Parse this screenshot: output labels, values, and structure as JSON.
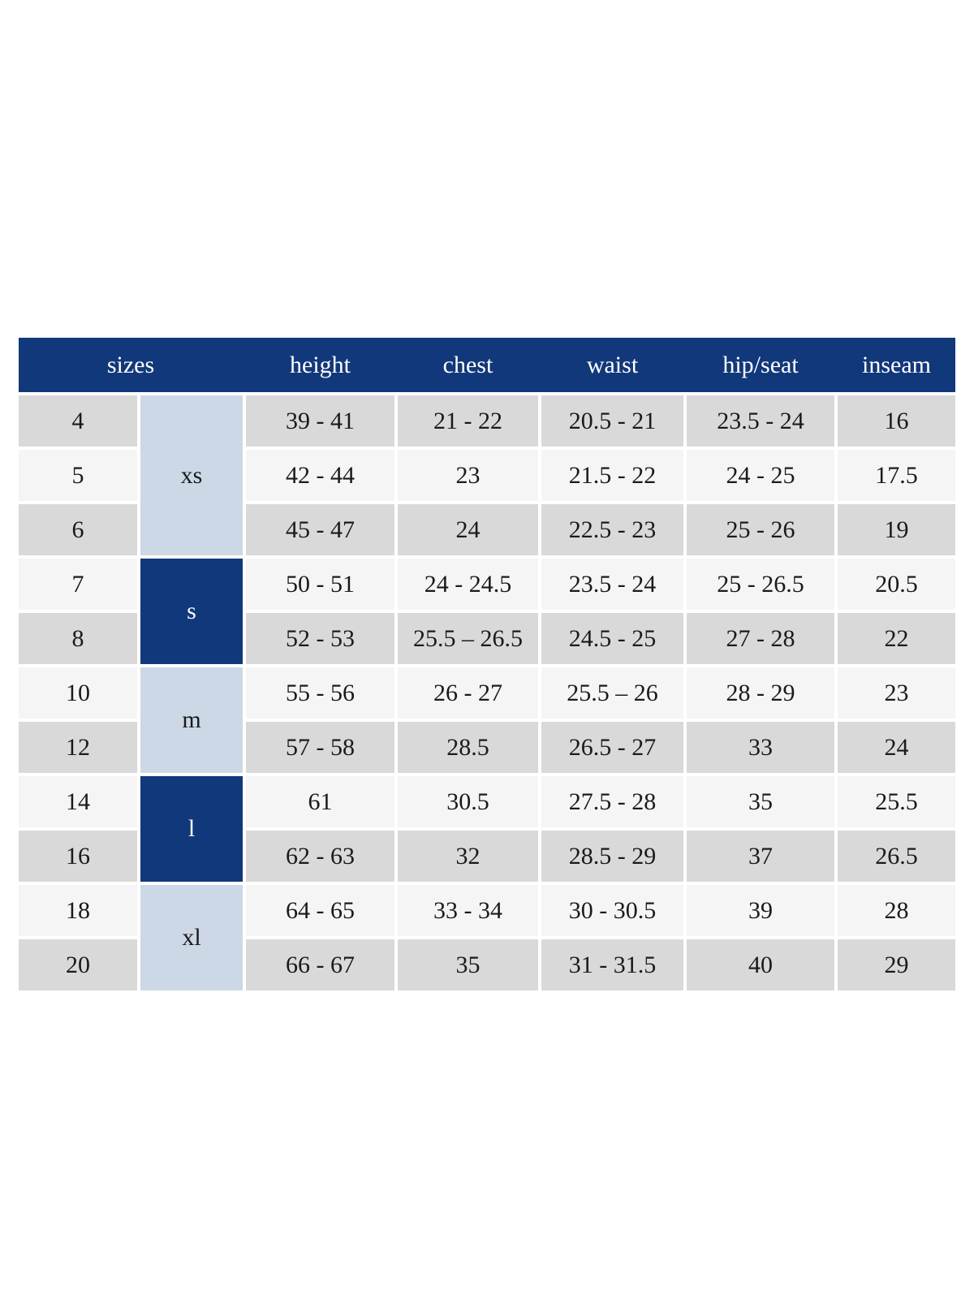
{
  "header": {
    "labels": {
      "sizes": "sizes",
      "height": "height",
      "chest": "chest",
      "waist": "waist",
      "hip_seat": "hip/seat",
      "inseam": "inseam"
    }
  },
  "groups": [
    {
      "label": "xs",
      "variant": "light",
      "row_span": 3
    },
    {
      "label": "s",
      "variant": "dark",
      "row_span": 2
    },
    {
      "label": "m",
      "variant": "light",
      "row_span": 2
    },
    {
      "label": "l",
      "variant": "dark",
      "row_span": 2
    },
    {
      "label": "xl",
      "variant": "light",
      "row_span": 2
    }
  ],
  "rows": [
    {
      "size": "4",
      "height": "39 - 41",
      "chest": "21 - 22",
      "waist": "20.5 - 21",
      "hip_seat": "23.5 - 24",
      "inseam": "16"
    },
    {
      "size": "5",
      "height": "42 - 44",
      "chest": "23",
      "waist": "21.5 - 22",
      "hip_seat": "24 - 25",
      "inseam": "17.5"
    },
    {
      "size": "6",
      "height": "45 - 47",
      "chest": "24",
      "waist": "22.5 - 23",
      "hip_seat": "25 - 26",
      "inseam": "19"
    },
    {
      "size": "7",
      "height": "50 - 51",
      "chest": "24 - 24.5",
      "waist": "23.5 - 24",
      "hip_seat": "25 - 26.5",
      "inseam": "20.5"
    },
    {
      "size": "8",
      "height": "52 - 53",
      "chest": "25.5 – 26.5",
      "waist": "24.5 - 25",
      "hip_seat": "27 - 28",
      "inseam": "22"
    },
    {
      "size": "10",
      "height": "55 - 56",
      "chest": "26 - 27",
      "waist": "25.5 – 26",
      "hip_seat": "28 - 29",
      "inseam": "23"
    },
    {
      "size": "12",
      "height": "57 - 58",
      "chest": "28.5",
      "waist": "26.5 - 27",
      "hip_seat": "33",
      "inseam": "24"
    },
    {
      "size": "14",
      "height": "61",
      "chest": "30.5",
      "waist": "27.5 - 28",
      "hip_seat": "35",
      "inseam": "25.5"
    },
    {
      "size": "16",
      "height": "62 - 63",
      "chest": "32",
      "waist": "28.5 - 29",
      "hip_seat": "37",
      "inseam": "26.5"
    },
    {
      "size": "18",
      "height": "64 - 65",
      "chest": "33 - 34",
      "waist": "30 - 30.5",
      "hip_seat": "39",
      "inseam": "28"
    },
    {
      "size": "20",
      "height": "66 - 67",
      "chest": "35",
      "waist": "31 - 31.5",
      "hip_seat": "40",
      "inseam": "29"
    }
  ],
  "colors": {
    "header_bg": "#11387a",
    "dark_group_bg": "#11387a",
    "light_group_bg": "#ccd8e6",
    "row_gray": "#d9d9d9",
    "row_light": "#f5f5f5",
    "text": "#1a1a1a",
    "header_text": "#ffffff"
  }
}
